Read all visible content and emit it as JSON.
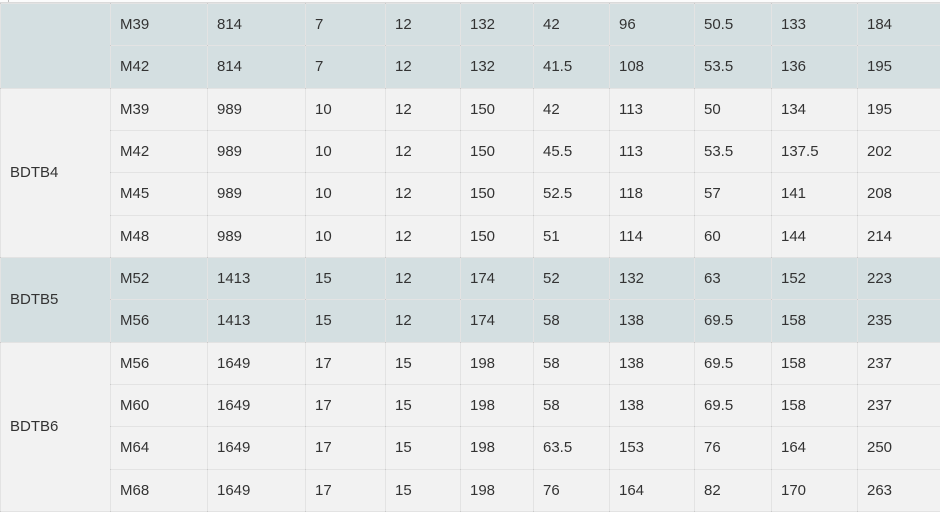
{
  "table": {
    "description_label": "specification-table",
    "colors": {
      "teal_row_bg": "#d4dfe1",
      "light_row_bg": "#f2f2f2",
      "text": "#333333",
      "border": "rgba(0,0,0,0.11)"
    },
    "groups": [
      {
        "label": "",
        "shade": "teal",
        "rows": [
          [
            "M39",
            "814",
            "7",
            "12",
            "132",
            "42",
            "96",
            "50.5",
            "133",
            "184"
          ],
          [
            "M42",
            "814",
            "7",
            "12",
            "132",
            "41.5",
            "108",
            "53.5",
            "136",
            "195"
          ]
        ]
      },
      {
        "label": "BDTB4",
        "shade": "light",
        "rows": [
          [
            "M39",
            "989",
            "10",
            "12",
            "150",
            "42",
            "113",
            "50",
            "134",
            "195"
          ],
          [
            "M42",
            "989",
            "10",
            "12",
            "150",
            "45.5",
            "113",
            "53.5",
            "137.5",
            "202"
          ],
          [
            "M45",
            "989",
            "10",
            "12",
            "150",
            "52.5",
            "118",
            "57",
            "141",
            "208"
          ],
          [
            "M48",
            "989",
            "10",
            "12",
            "150",
            "51",
            "114",
            "60",
            "144",
            "214"
          ]
        ]
      },
      {
        "label": "BDTB5",
        "shade": "teal",
        "rows": [
          [
            "M52",
            "1413",
            "15",
            "12",
            "174",
            "52",
            "132",
            "63",
            "152",
            "223"
          ],
          [
            "M56",
            "1413",
            "15",
            "12",
            "174",
            "58",
            "138",
            "69.5",
            "158",
            "235"
          ]
        ]
      },
      {
        "label": "BDTB6",
        "shade": "light",
        "rows": [
          [
            "M56",
            "1649",
            "17",
            "15",
            "198",
            "58",
            "138",
            "69.5",
            "158",
            "237"
          ],
          [
            "M60",
            "1649",
            "17",
            "15",
            "198",
            "58",
            "138",
            "69.5",
            "158",
            "237"
          ],
          [
            "M64",
            "1649",
            "17",
            "15",
            "198",
            "63.5",
            "153",
            "76",
            "164",
            "250"
          ],
          [
            "M68",
            "1649",
            "17",
            "15",
            "198",
            "76",
            "164",
            "82",
            "170",
            "263"
          ]
        ]
      }
    ]
  }
}
